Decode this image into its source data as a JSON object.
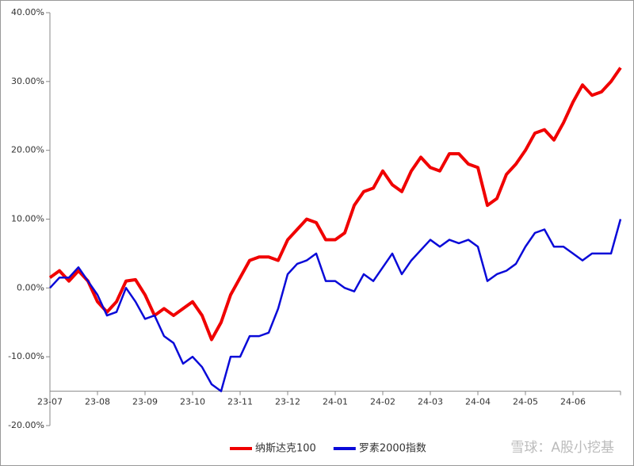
{
  "chart_data": {
    "type": "line",
    "categories": [
      "23-07",
      null,
      null,
      null,
      null,
      "23-08",
      null,
      null,
      null,
      null,
      "23-09",
      null,
      null,
      null,
      null,
      "23-10",
      null,
      null,
      null,
      null,
      "23-11",
      null,
      null,
      null,
      null,
      "23-12",
      null,
      null,
      null,
      null,
      "24-01",
      null,
      null,
      null,
      null,
      "24-02",
      null,
      null,
      null,
      null,
      "24-03",
      null,
      null,
      null,
      null,
      "24-04",
      null,
      null,
      null,
      null,
      "24-05",
      null,
      null,
      null,
      null,
      "24-06",
      null,
      null,
      null,
      null,
      null
    ],
    "series": [
      {
        "name": "纳斯达克100",
        "color": "#f00000",
        "values": [
          1.5,
          2.5,
          1,
          2.5,
          1,
          -2,
          -3.5,
          -2,
          1,
          1.2,
          -1,
          -4,
          -3,
          -4,
          -3,
          -2,
          -4,
          -7.5,
          -5,
          -1,
          1.5,
          4,
          4.5,
          4.5,
          4,
          7,
          8.5,
          10,
          9.5,
          7,
          7,
          8,
          12,
          14,
          14.5,
          17,
          15,
          14,
          17,
          19,
          17.5,
          17,
          19.5,
          19.5,
          18,
          17.5,
          12,
          13,
          16.5,
          18,
          20,
          22.5,
          23,
          21.5,
          24,
          27,
          29.5,
          28,
          28.5,
          30,
          32
        ]
      },
      {
        "name": "罗素2000指数",
        "color": "#0a0ad8",
        "values": [
          0,
          1.5,
          1.5,
          3,
          1,
          -1,
          -4,
          -3.5,
          0,
          -2,
          -4.5,
          -4,
          -7,
          -8,
          -11,
          -10,
          -11.5,
          -14,
          -15,
          -10,
          -10,
          -7,
          -7,
          -6.5,
          -3,
          2,
          3.5,
          4,
          5,
          1,
          1,
          0,
          -0.5,
          2,
          1,
          3,
          5,
          2,
          4,
          5.5,
          7,
          6,
          7,
          6.5,
          7,
          6,
          1,
          2,
          2.5,
          3.5,
          6,
          8,
          8.5,
          6,
          6,
          5,
          4,
          5,
          5,
          5,
          10
        ]
      }
    ],
    "ylim": [
      -20,
      40
    ],
    "yticks": [
      {
        "value": -20,
        "label": "-20.00%"
      },
      {
        "value": -10,
        "label": "-10.00%"
      },
      {
        "value": 0,
        "label": "0.00%"
      },
      {
        "value": 10,
        "label": "10.00%"
      },
      {
        "value": 20,
        "label": "20.00%"
      },
      {
        "value": 30,
        "label": "30.00%"
      },
      {
        "value": 40,
        "label": "40.00%"
      }
    ],
    "x_axis_at": -15,
    "legend": "bottom",
    "watermark": "雪球：A股小挖基"
  }
}
